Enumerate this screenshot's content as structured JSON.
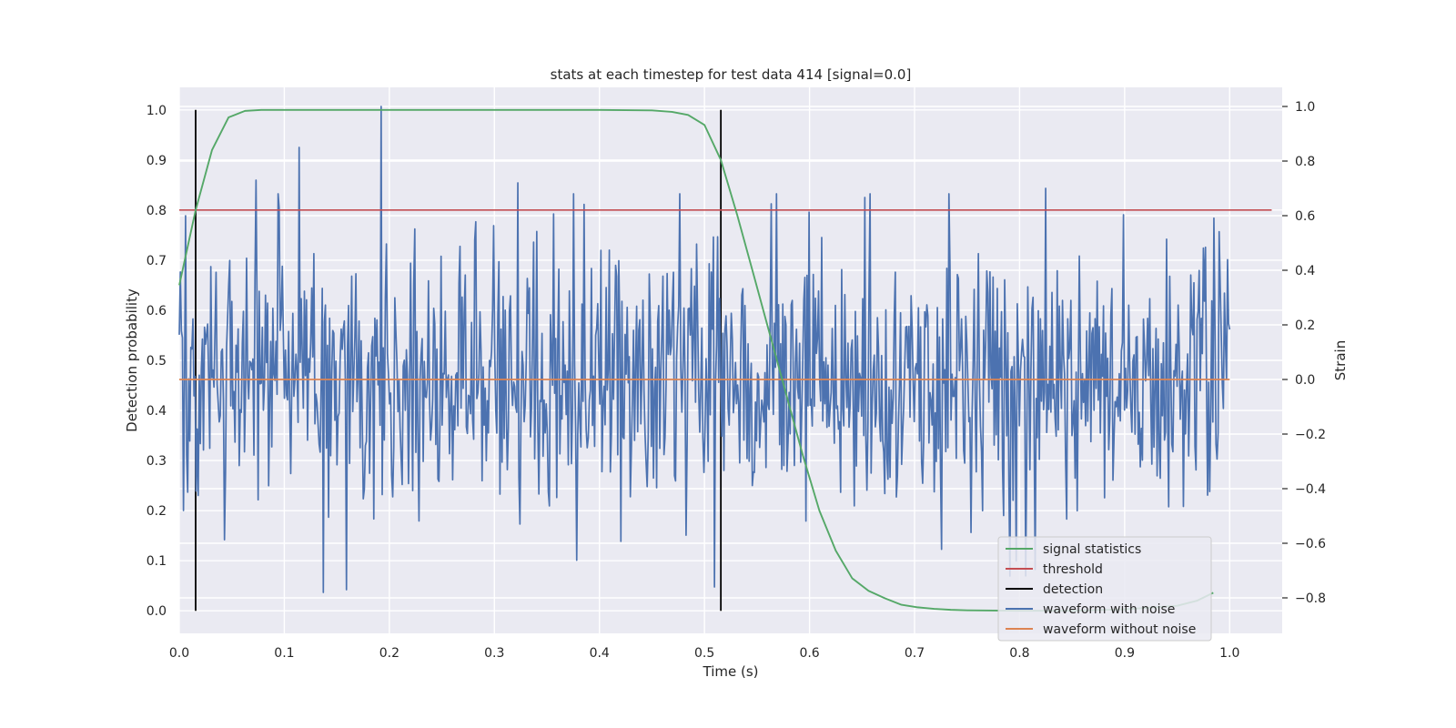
{
  "chart_data": {
    "type": "line",
    "title": "stats at each timestep for test data 414 [signal=0.0]",
    "xlabel": "Time (s)",
    "ylabel": "Detection probability",
    "y2label": "Strain",
    "xlim": [
      0.0,
      1.05
    ],
    "ylim": [
      -0.045,
      1.045
    ],
    "y2lim": [
      -0.93,
      1.07
    ],
    "xticks": [
      "0.0",
      "0.1",
      "0.2",
      "0.3",
      "0.4",
      "0.5",
      "0.6",
      "0.7",
      "0.8",
      "0.9",
      "1.0"
    ],
    "xtick_values": [
      0.0,
      0.1,
      0.2,
      0.3,
      0.4,
      0.5,
      0.6,
      0.7,
      0.8,
      0.9,
      1.0
    ],
    "yticks": [
      "0.0",
      "0.1",
      "0.2",
      "0.3",
      "0.4",
      "0.5",
      "0.6",
      "0.7",
      "0.8",
      "0.9",
      "1.0"
    ],
    "ytick_values": [
      0.0,
      0.1,
      0.2,
      0.3,
      0.4,
      0.5,
      0.6,
      0.7,
      0.8,
      0.9,
      1.0
    ],
    "y2ticks": [
      "−0.8",
      "−0.6",
      "−0.4",
      "−0.2",
      "0.0",
      "0.2",
      "0.4",
      "0.6",
      "0.8",
      "1.0"
    ],
    "y2tick_values": [
      -0.8,
      -0.6,
      -0.4,
      -0.2,
      0.0,
      0.2,
      0.4,
      0.6,
      0.8,
      1.0
    ],
    "grid": true,
    "legend_position": "bottom-right",
    "series": [
      {
        "name": "signal statistics",
        "color": "#55a868",
        "axis": "left",
        "x": [
          0.0,
          0.0156,
          0.0312,
          0.0469,
          0.0625,
          0.0781,
          0.125,
          0.2,
          0.3,
          0.4,
          0.45,
          0.469,
          0.4844,
          0.5,
          0.5156,
          0.5312,
          0.5469,
          0.5625,
          0.5781,
          0.5937,
          0.6094,
          0.625,
          0.6406,
          0.6562,
          0.6719,
          0.6875,
          0.7031,
          0.7187,
          0.7344,
          0.75,
          0.8,
          0.85,
          0.9,
          0.95,
          0.9687,
          0.9844
        ],
        "y": [
          0.65,
          0.8,
          0.92,
          0.985,
          0.998,
          1.0,
          1.0,
          1.0,
          1.0,
          1.0,
          0.999,
          0.996,
          0.99,
          0.97,
          0.9,
          0.79,
          0.67,
          0.55,
          0.43,
          0.31,
          0.2,
          0.12,
          0.065,
          0.04,
          0.025,
          0.012,
          0.007,
          0.004,
          0.002,
          0.001,
          0.0,
          0.0,
          0.003,
          0.01,
          0.02,
          0.036
        ]
      },
      {
        "name": "threshold",
        "color": "#c44e52",
        "axis": "left",
        "x": [
          0.0,
          1.04
        ],
        "y": [
          0.8,
          0.8
        ]
      },
      {
        "name": "detection",
        "color": "#000000",
        "axis": "left",
        "segments": [
          {
            "x": 0.0156,
            "y": [
              0.0,
              1.0
            ]
          },
          {
            "x": 0.5156,
            "y": [
              0.0,
              1.0
            ]
          }
        ]
      },
      {
        "name": "waveform with noise",
        "color": "#4c72b0",
        "axis": "right",
        "n_points": 1000,
        "x_range": [
          0.0,
          1.0
        ],
        "std": 0.25,
        "seed": 414,
        "peaks": [
          {
            "x": 0.192,
            "y": 1.0
          },
          {
            "x": 0.114,
            "y": 0.85
          },
          {
            "x": 0.073,
            "y": 0.73
          },
          {
            "x": 0.322,
            "y": 0.72
          },
          {
            "x": 0.825,
            "y": 0.7
          },
          {
            "x": 0.137,
            "y": -0.78
          },
          {
            "x": 0.159,
            "y": -0.77
          },
          {
            "x": 0.51,
            "y": -0.76
          },
          {
            "x": 0.0045,
            "y": -0.48
          }
        ]
      },
      {
        "name": "waveform without noise",
        "color": "#dd8452",
        "axis": "right",
        "x": [
          0.0,
          1.0
        ],
        "y": [
          0.0,
          0.0
        ]
      }
    ]
  }
}
